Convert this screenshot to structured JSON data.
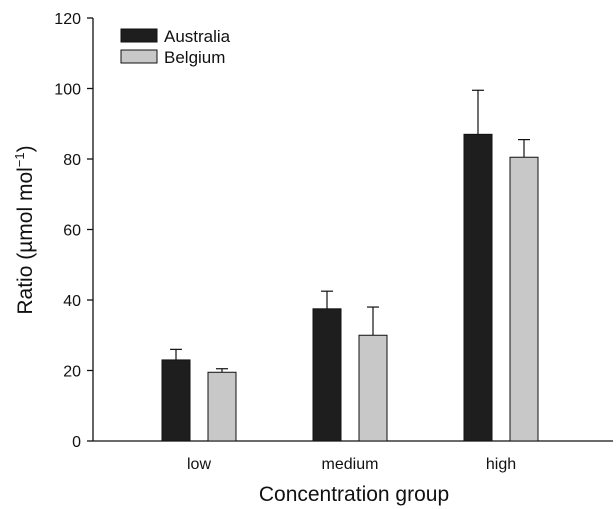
{
  "chart_data": {
    "type": "bar",
    "categories": [
      "low",
      "medium",
      "high"
    ],
    "series": [
      {
        "name": "Australia",
        "values": [
          23,
          37.5,
          87
        ],
        "errors": [
          3,
          5,
          12.5
        ],
        "color": "#1e1e1e"
      },
      {
        "name": "Belgium",
        "values": [
          19.5,
          30,
          80.5
        ],
        "errors": [
          1,
          8,
          5
        ],
        "color": "#c8c8c8"
      }
    ],
    "xlabel": "Concentration group",
    "ylabel_main": "Ratio (µmol mol",
    "ylabel_sup": "−1",
    "ylabel_end": ")",
    "ylim": [
      0,
      120
    ],
    "yticks": [
      "0",
      "20",
      "40",
      "60",
      "80",
      "100",
      "120"
    ],
    "grid": false,
    "legend_position": "top-left",
    "has_error_bars": true
  }
}
